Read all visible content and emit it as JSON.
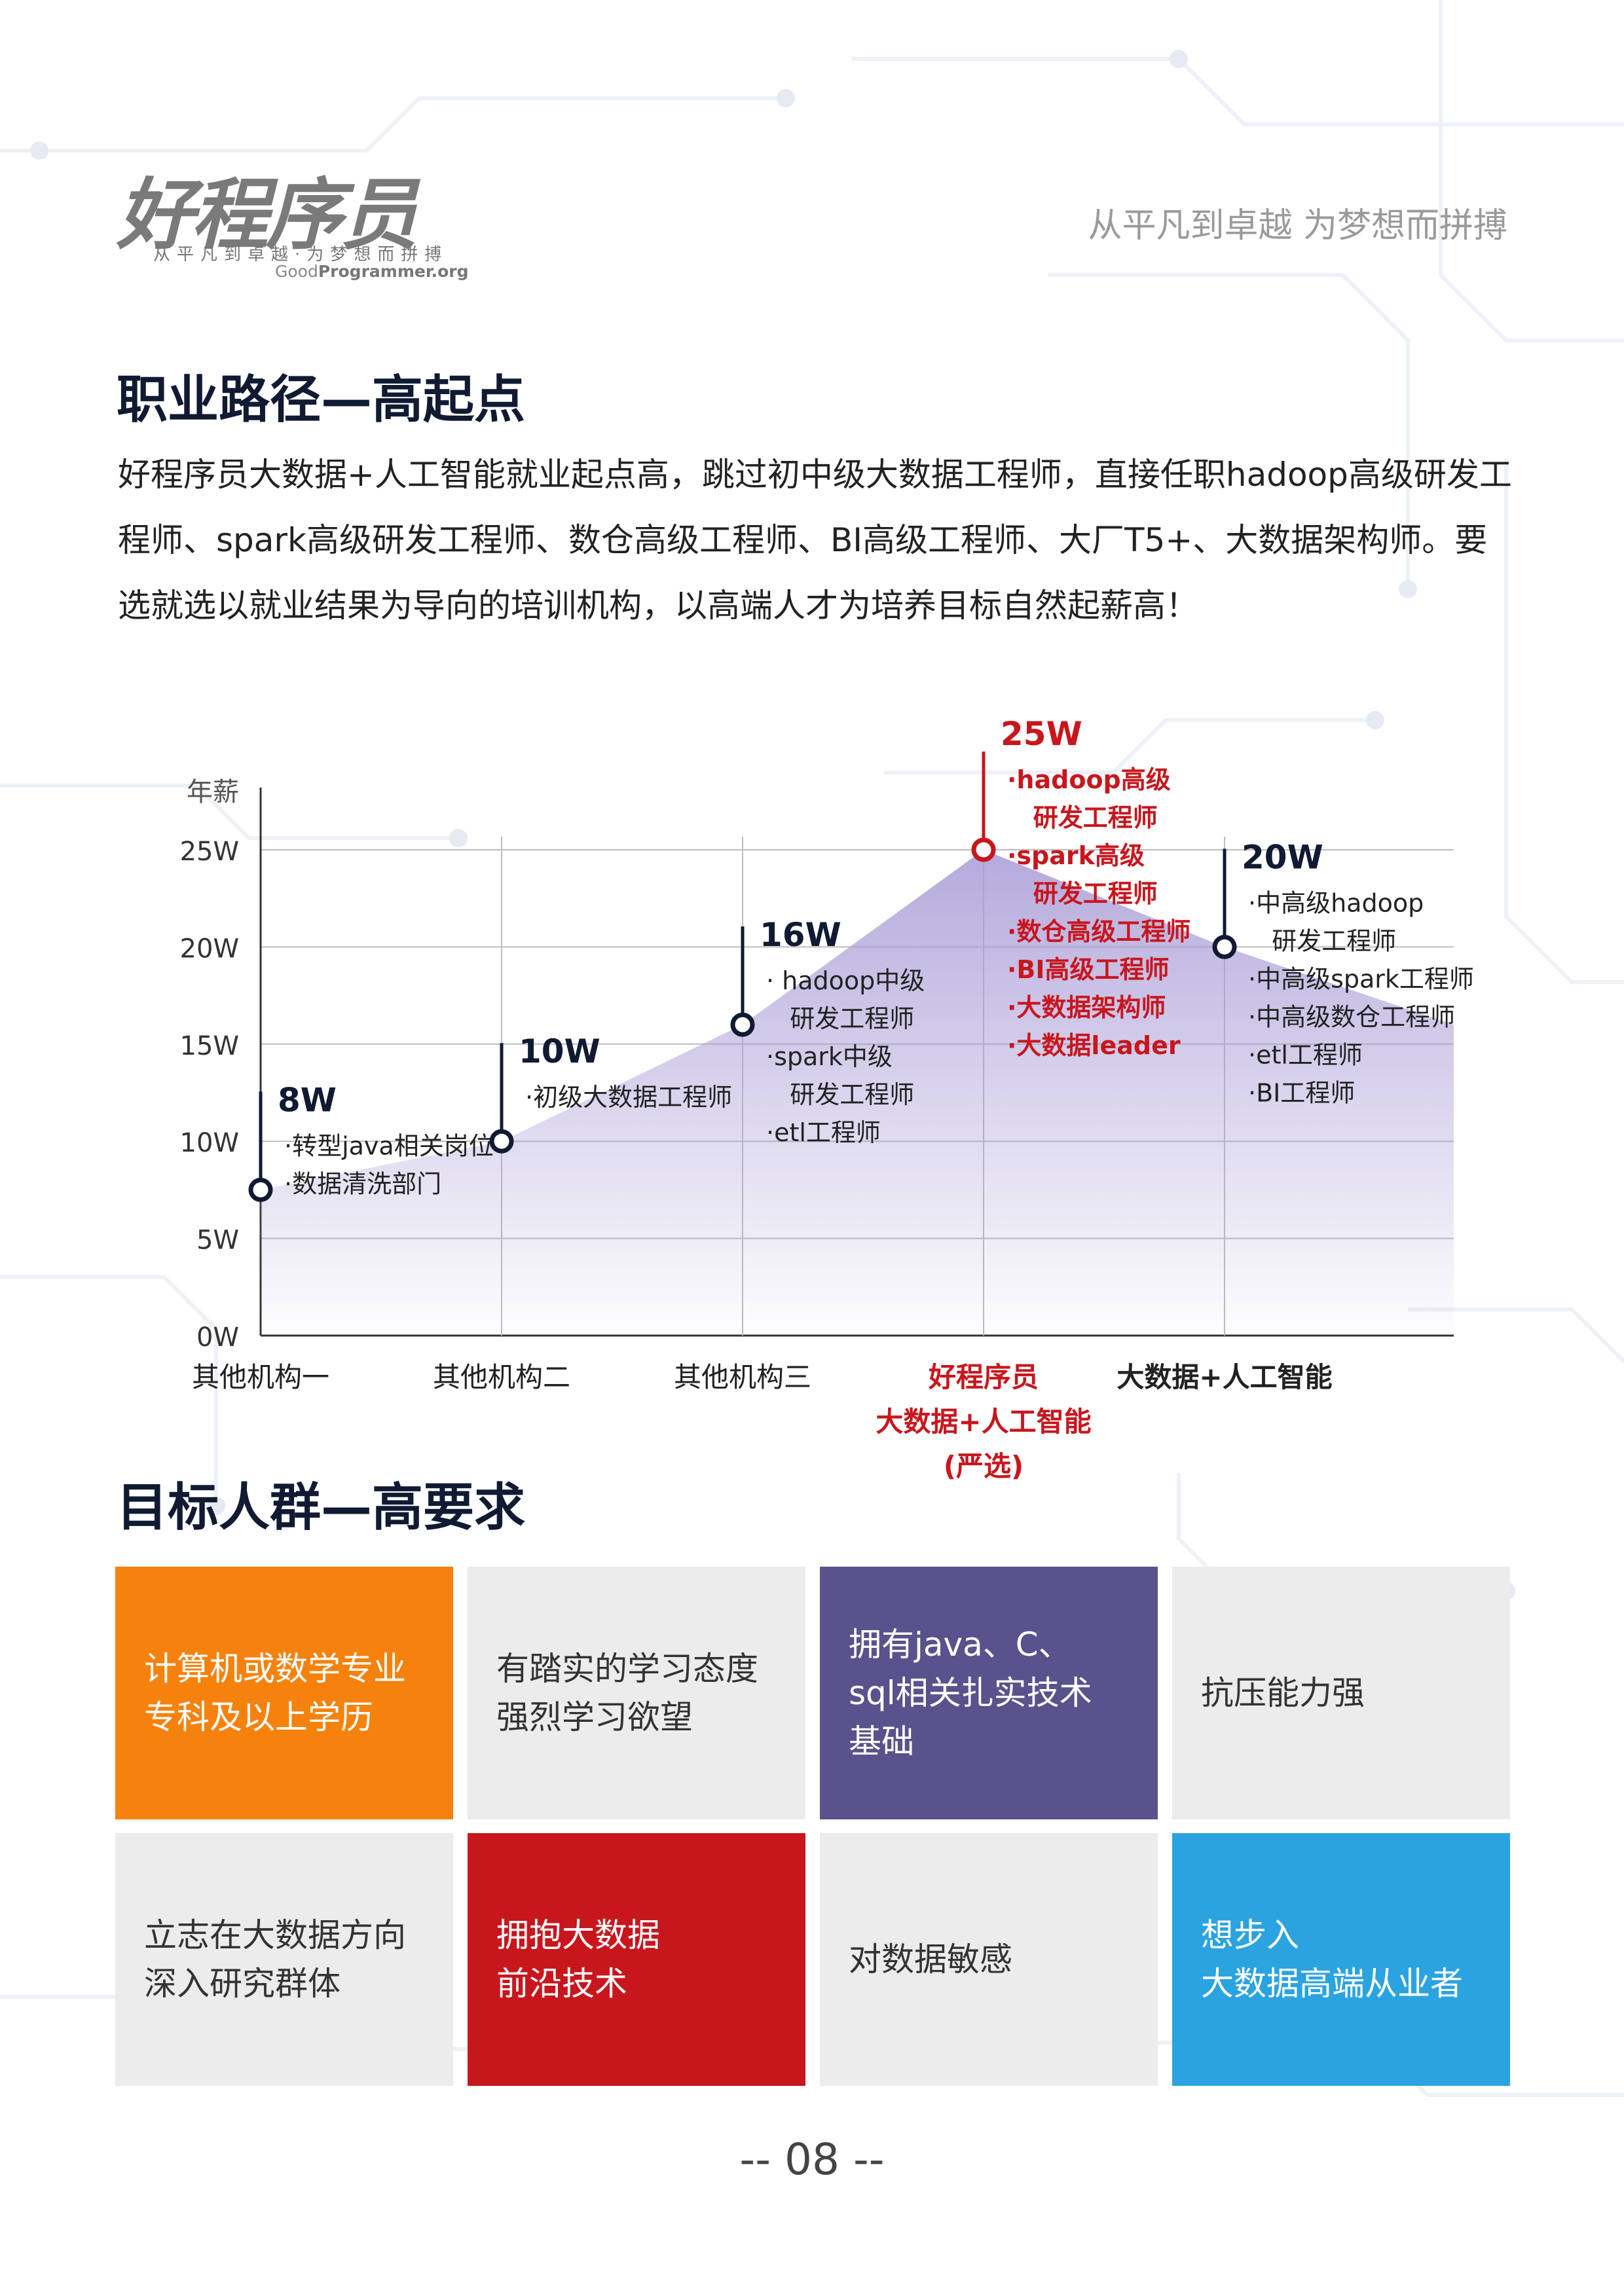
{
  "header": {
    "logo_text": "好程序员",
    "logo_tagline": "从平凡到卓越·为梦想而拼搏",
    "logo_site_light": "Good",
    "logo_site_bold": "Programmer.org",
    "slogan": "从平凡到卓越 为梦想而拼搏"
  },
  "section1": {
    "title": "职业路径—高起点",
    "intro": "好程序员大数据+人工智能就业起点高，跳过初中级大数据工程师，直接任职hadoop高级研发工程师、spark高级研发工程师、数仓高级工程师、BI高级工程师、大厂T5+、大数据架构师。要选就选以就业结果为导向的培训机构，以高端人才为培养目标自然起薪高！"
  },
  "chart_data": {
    "type": "area",
    "ylabel": "年薪",
    "y_ticks": [
      "0W",
      "5W",
      "10W",
      "15W",
      "20W",
      "25W"
    ],
    "ylim": [
      0,
      25
    ],
    "grid": true,
    "colors": {
      "area": "#a89bd6",
      "highlight": "#c8161d",
      "marker": "#111a33"
    },
    "categories": [
      {
        "label_lines": [
          "其他机构一"
        ],
        "highlight": false,
        "bold": false
      },
      {
        "label_lines": [
          "其他机构二"
        ],
        "highlight": false,
        "bold": false
      },
      {
        "label_lines": [
          "其他机构三"
        ],
        "highlight": false,
        "bold": false
      },
      {
        "label_lines": [
          "好程序员",
          "大数据+人工智能",
          "(严选)"
        ],
        "highlight": true,
        "bold": true
      },
      {
        "label_lines": [
          "大数据+人工智能"
        ],
        "highlight": false,
        "bold": true
      }
    ],
    "points": [
      {
        "value": 7.5,
        "label": "8W",
        "items": [
          "·转型java相关岗位",
          "·数据清洗部门"
        ]
      },
      {
        "value": 10,
        "label": "10W",
        "items": [
          "·初级大数据工程师"
        ]
      },
      {
        "value": 16,
        "label": "16W",
        "items": [
          "· hadoop中级",
          "  研发工程师",
          "·spark中级",
          "  研发工程师",
          "·etl工程师"
        ]
      },
      {
        "value": 25,
        "label": "25W",
        "items": [
          "·hadoop高级",
          "  研发工程师",
          "·spark高级",
          "  研发工程师",
          "·数仓高级工程师",
          "·BI高级工程师",
          "·大数据架构师",
          "·大数据leader"
        ]
      },
      {
        "value": 20,
        "label": "20W",
        "items": [
          "·中高级hadoop",
          "  研发工程师",
          "·中高级spark工程师",
          "·中高级数仓工程师",
          "·etl工程师",
          "·BI工程师"
        ]
      }
    ]
  },
  "section2": {
    "title": "目标人群—高要求",
    "tiles": [
      {
        "text": "计算机或数学专业\n专科及以上学历",
        "bg": "#f5820d",
        "fg": "#ffffff"
      },
      {
        "text": "有踏实的学习态度\n强烈学习欲望",
        "bg": "#ececec",
        "fg": "#333333"
      },
      {
        "text": "拥有java、C、\nsql相关扎实技术\n基础",
        "bg": "#5a528c",
        "fg": "#ffffff"
      },
      {
        "text": "抗压能力强",
        "bg": "#ececec",
        "fg": "#333333"
      },
      {
        "text": "立志在大数据方向\n深入研究群体",
        "bg": "#ececec",
        "fg": "#333333"
      },
      {
        "text": "拥抱大数据\n前沿技术",
        "bg": "#c8161d",
        "fg": "#ffffff"
      },
      {
        "text": "对数据敏感",
        "bg": "#ececec",
        "fg": "#333333"
      },
      {
        "text": "想步入\n大数据高端从业者",
        "bg": "#2ba3e0",
        "fg": "#ffffff"
      }
    ]
  },
  "footer": {
    "page_number": "-- 08 --"
  }
}
